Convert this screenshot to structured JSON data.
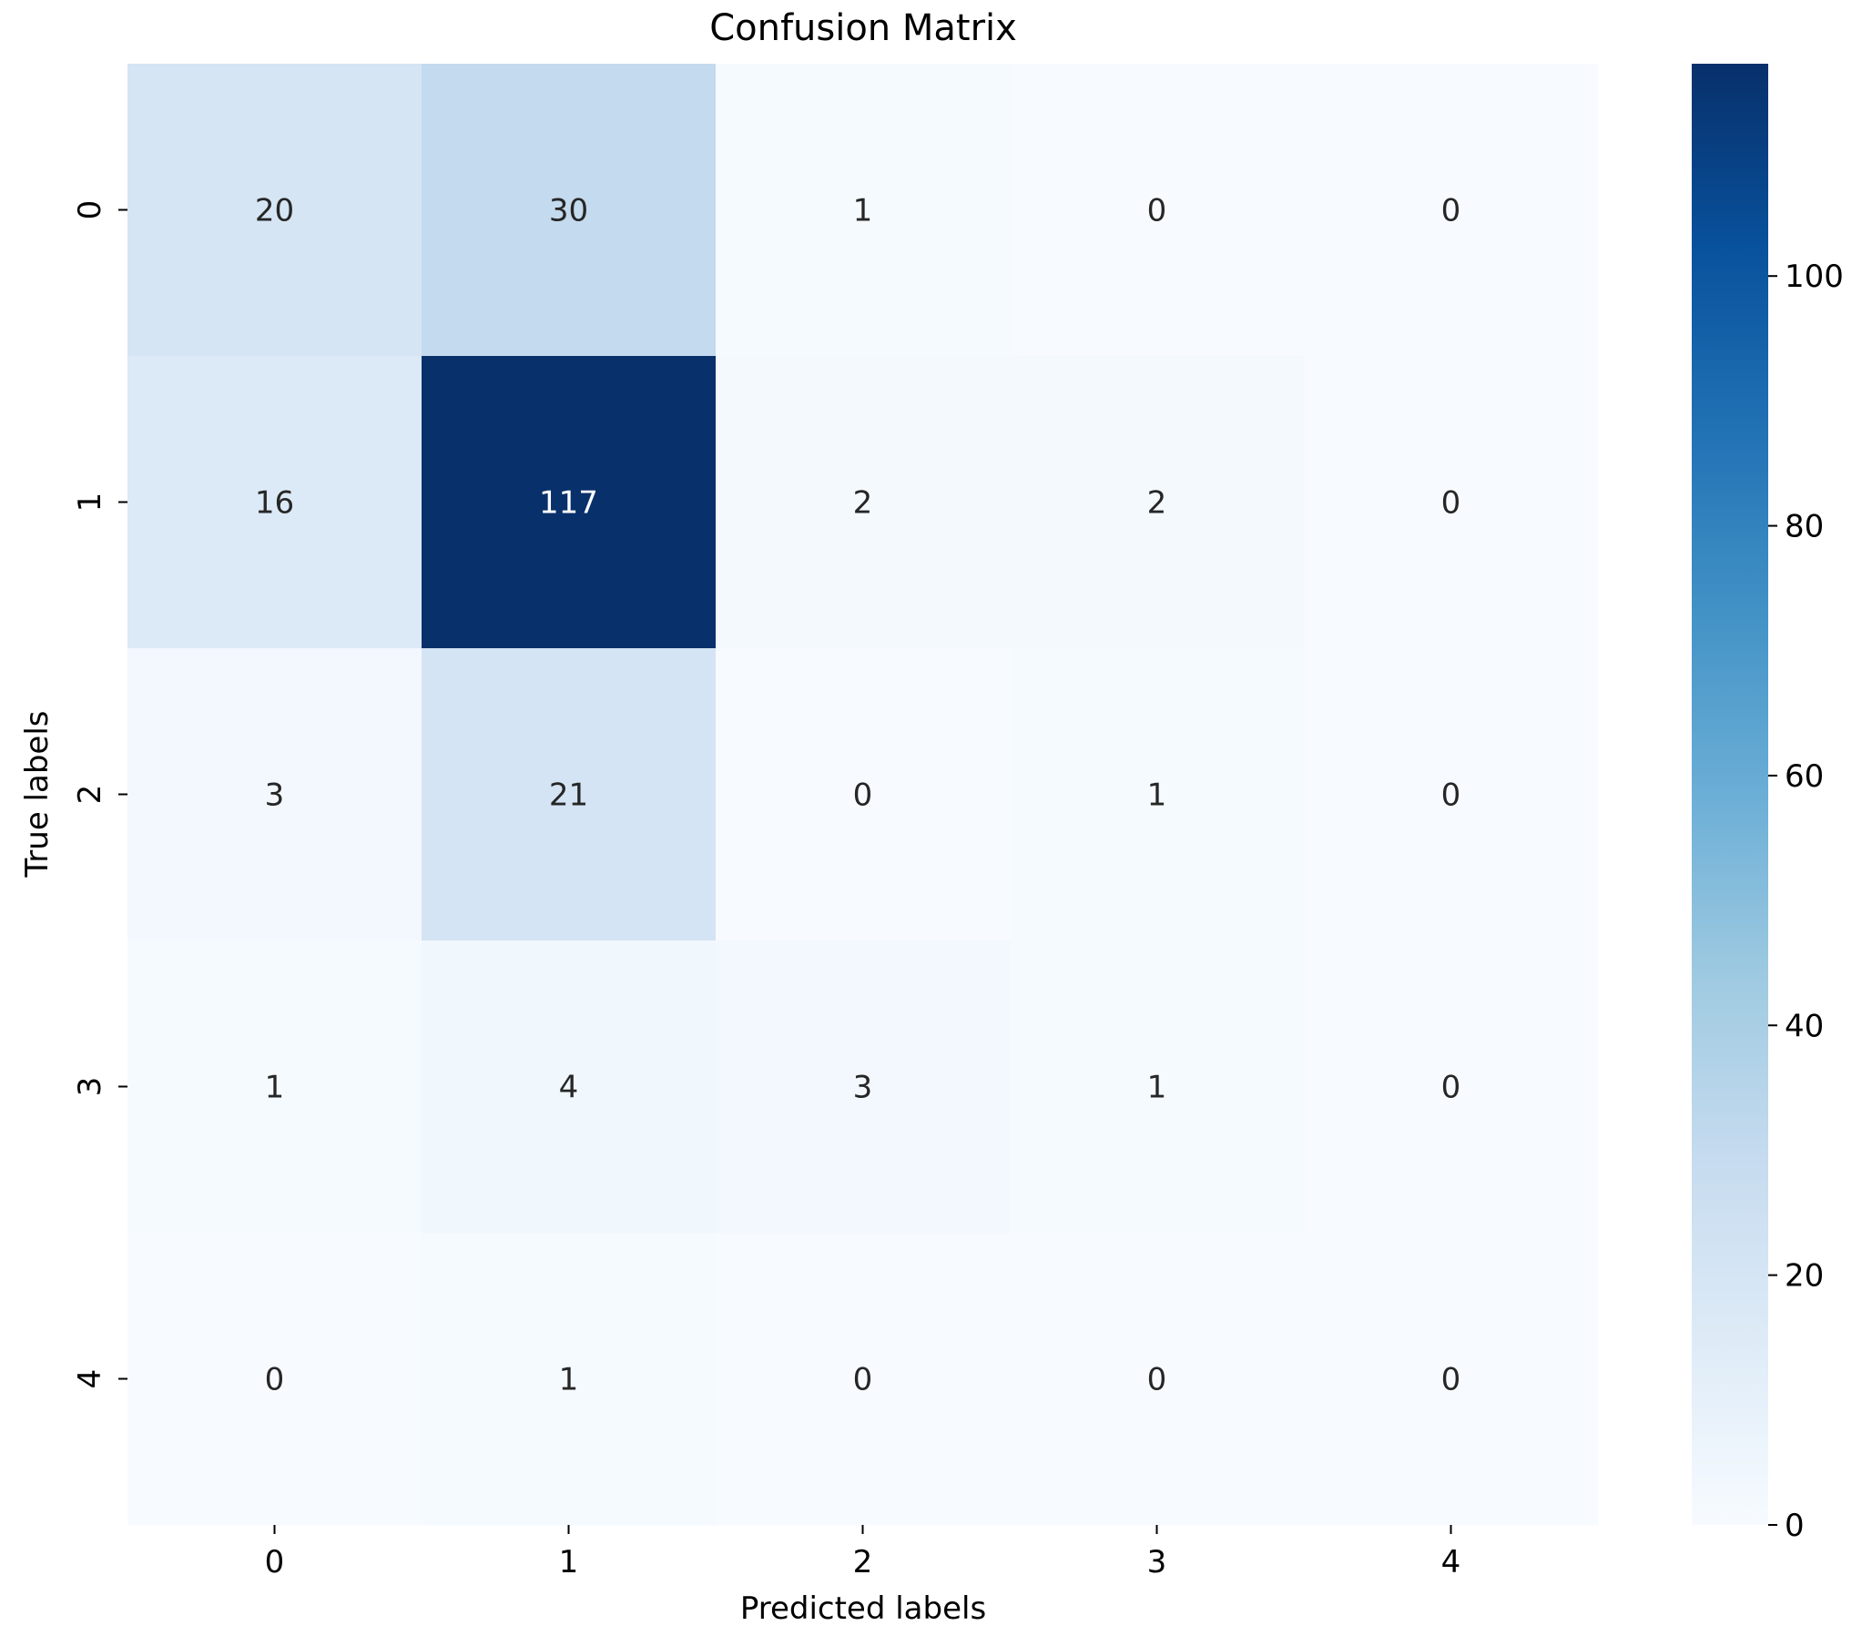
{
  "chart_data": {
    "type": "heatmap",
    "title": "Confusion Matrix",
    "xlabel": "Predicted labels",
    "ylabel": "True labels",
    "x_categories": [
      "0",
      "1",
      "2",
      "3",
      "4"
    ],
    "y_categories": [
      "0",
      "1",
      "2",
      "3",
      "4"
    ],
    "values": [
      [
        20,
        30,
        1,
        0,
        0
      ],
      [
        16,
        117,
        2,
        2,
        0
      ],
      [
        3,
        21,
        0,
        1,
        0
      ],
      [
        1,
        4,
        3,
        1,
        0
      ],
      [
        0,
        1,
        0,
        0,
        0
      ]
    ],
    "colormap": "Blues",
    "color_range": [
      0,
      117
    ],
    "colorbar_ticks": [
      0,
      20,
      40,
      60,
      80,
      100
    ]
  }
}
